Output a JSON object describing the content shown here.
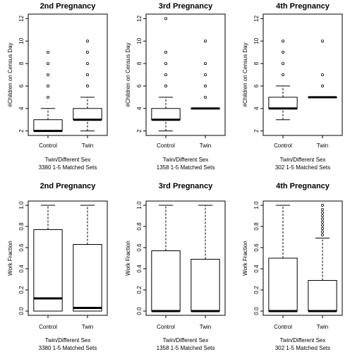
{
  "chart_data": [
    {
      "type": "boxplot",
      "title": "2nd Pregnancy",
      "ylabel": "#Children on Census Day",
      "ylim": [
        1.6,
        12.4
      ],
      "yticks": [
        "2",
        "4",
        "6",
        "8",
        "10",
        "12"
      ],
      "categories": [
        "Control",
        "Twin"
      ],
      "subtitle": [
        "Twin/Different Sex",
        "3380 1-5 Matched Sets"
      ],
      "boxes": [
        {
          "group": "Control",
          "lower_whisker": 2,
          "q1": 2,
          "median": 2,
          "q3": 3,
          "upper_whisker": 4,
          "outliers": [
            5,
            6,
            7,
            8,
            9
          ]
        },
        {
          "group": "Twin",
          "lower_whisker": 2,
          "q1": 3,
          "median": 3,
          "q3": 4,
          "upper_whisker": 5,
          "outliers": [
            6,
            7,
            8,
            9,
            10
          ]
        }
      ]
    },
    {
      "type": "boxplot",
      "title": "3rd Pregnancy",
      "ylabel": "#Children on Census Day",
      "ylim": [
        1.6,
        12.4
      ],
      "yticks": [
        "2",
        "4",
        "6",
        "8",
        "10",
        "12"
      ],
      "categories": [
        "Control",
        "Twin"
      ],
      "subtitle": [
        "Twin/Different Sex",
        "1358 1-5 Matched Sets"
      ],
      "boxes": [
        {
          "group": "Control",
          "lower_whisker": 2,
          "q1": 3,
          "median": 3,
          "q3": 4,
          "upper_whisker": 5,
          "outliers": [
            6,
            7,
            8,
            9,
            12
          ]
        },
        {
          "group": "Twin",
          "lower_whisker": 4,
          "q1": 4,
          "median": 4,
          "q3": 4,
          "upper_whisker": 4,
          "outliers": [
            5,
            6,
            7,
            8,
            10
          ]
        }
      ]
    },
    {
      "type": "boxplot",
      "title": "4th Pregnancy",
      "ylabel": "#Children on Census Day",
      "ylim": [
        1.6,
        12.4
      ],
      "yticks": [
        "2",
        "4",
        "6",
        "8",
        "10",
        "12"
      ],
      "categories": [
        "Control",
        "Twin"
      ],
      "subtitle": [
        "Twin/Different Sex",
        "302 1-5 Matched Sets"
      ],
      "boxes": [
        {
          "group": "Control",
          "lower_whisker": 3,
          "q1": 4,
          "median": 4,
          "q3": 5,
          "upper_whisker": 6,
          "outliers": [
            7,
            8,
            9,
            10
          ]
        },
        {
          "group": "Twin",
          "lower_whisker": 5,
          "q1": 5,
          "median": 5,
          "q3": 5,
          "upper_whisker": 5,
          "outliers": [
            6,
            7,
            10
          ]
        }
      ]
    },
    {
      "type": "boxplot",
      "title": "2nd Pregnancy",
      "ylabel": "Work Fraction",
      "ylim": [
        -0.04,
        1.04
      ],
      "yticks": [
        "0.0",
        "0.2",
        "0.4",
        "0.6",
        "0.8",
        "1.0"
      ],
      "categories": [
        "Control",
        "Twin"
      ],
      "subtitle": [
        "Twin/Different Sex",
        "3380 1-5 Matched Sets"
      ],
      "boxes": [
        {
          "group": "Control",
          "lower_whisker": 0,
          "q1": 0,
          "median": 0.12,
          "q3": 0.77,
          "upper_whisker": 1.0,
          "outliers": []
        },
        {
          "group": "Twin",
          "lower_whisker": 0,
          "q1": 0,
          "median": 0.03,
          "q3": 0.63,
          "upper_whisker": 1.0,
          "outliers": []
        }
      ]
    },
    {
      "type": "boxplot",
      "title": "3rd Pregnancy",
      "ylabel": "Work Fraction",
      "ylim": [
        -0.04,
        1.04
      ],
      "yticks": [
        "0.0",
        "0.2",
        "0.4",
        "0.6",
        "0.8",
        "1.0"
      ],
      "categories": [
        "Control",
        "Twin"
      ],
      "subtitle": [
        "Twin/Different Sex",
        "1358 1-5 Matched Sets"
      ],
      "boxes": [
        {
          "group": "Control",
          "lower_whisker": 0,
          "q1": 0,
          "median": 0,
          "q3": 0.57,
          "upper_whisker": 1.0,
          "outliers": []
        },
        {
          "group": "Twin",
          "lower_whisker": 0,
          "q1": 0,
          "median": 0,
          "q3": 0.49,
          "upper_whisker": 1.0,
          "outliers": []
        }
      ]
    },
    {
      "type": "boxplot",
      "title": "4th Pregnancy",
      "ylabel": "Work Fraction",
      "ylim": [
        -0.04,
        1.04
      ],
      "yticks": [
        "0.0",
        "0.2",
        "0.4",
        "0.6",
        "0.8",
        "1.0"
      ],
      "categories": [
        "Control",
        "Twin"
      ],
      "subtitle": [
        "Twin/Different Sex",
        "302 1-5 Matched Sets"
      ],
      "boxes": [
        {
          "group": "Control",
          "lower_whisker": 0,
          "q1": 0,
          "median": 0,
          "q3": 0.5,
          "upper_whisker": 1.0,
          "outliers": []
        },
        {
          "group": "Twin",
          "lower_whisker": 0,
          "q1": 0,
          "median": 0,
          "q3": 0.29,
          "upper_whisker": 0.69,
          "outliers": [
            0.72,
            0.75,
            0.78,
            0.81,
            0.84,
            0.87,
            0.9,
            0.93,
            0.96,
            1.0
          ]
        }
      ]
    }
  ]
}
